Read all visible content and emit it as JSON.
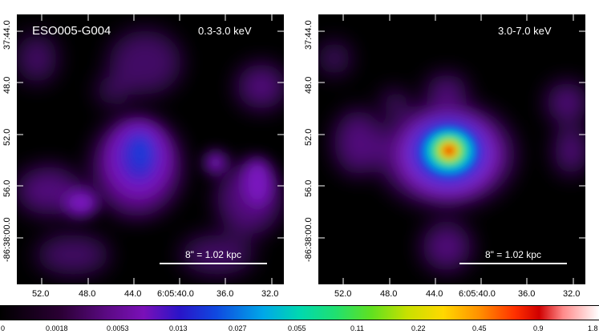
{
  "panels": {
    "left": {
      "object_name": "ESO005-G004",
      "band": "0.3-3.0 keV",
      "scalebar": "8\" = 1.02 kpc"
    },
    "right": {
      "band": "3.0-7.0 keV",
      "scalebar": "8\" = 1.02 kpc"
    }
  },
  "dec_ticks": [
    "37:44.0",
    "48.0",
    "52.0",
    "56.0",
    "-86:38:00.0"
  ],
  "ra_ticks": [
    "52.0",
    "48.0",
    "44.0",
    "6:05:40.0",
    "36.0",
    "32.0"
  ],
  "colorbar": {
    "ticks": [
      "0",
      "0.0018",
      "0.0053",
      "0.013",
      "0.027",
      "0.055",
      "0.11",
      "0.22",
      "0.45",
      "0.9",
      "1.8"
    ]
  }
}
